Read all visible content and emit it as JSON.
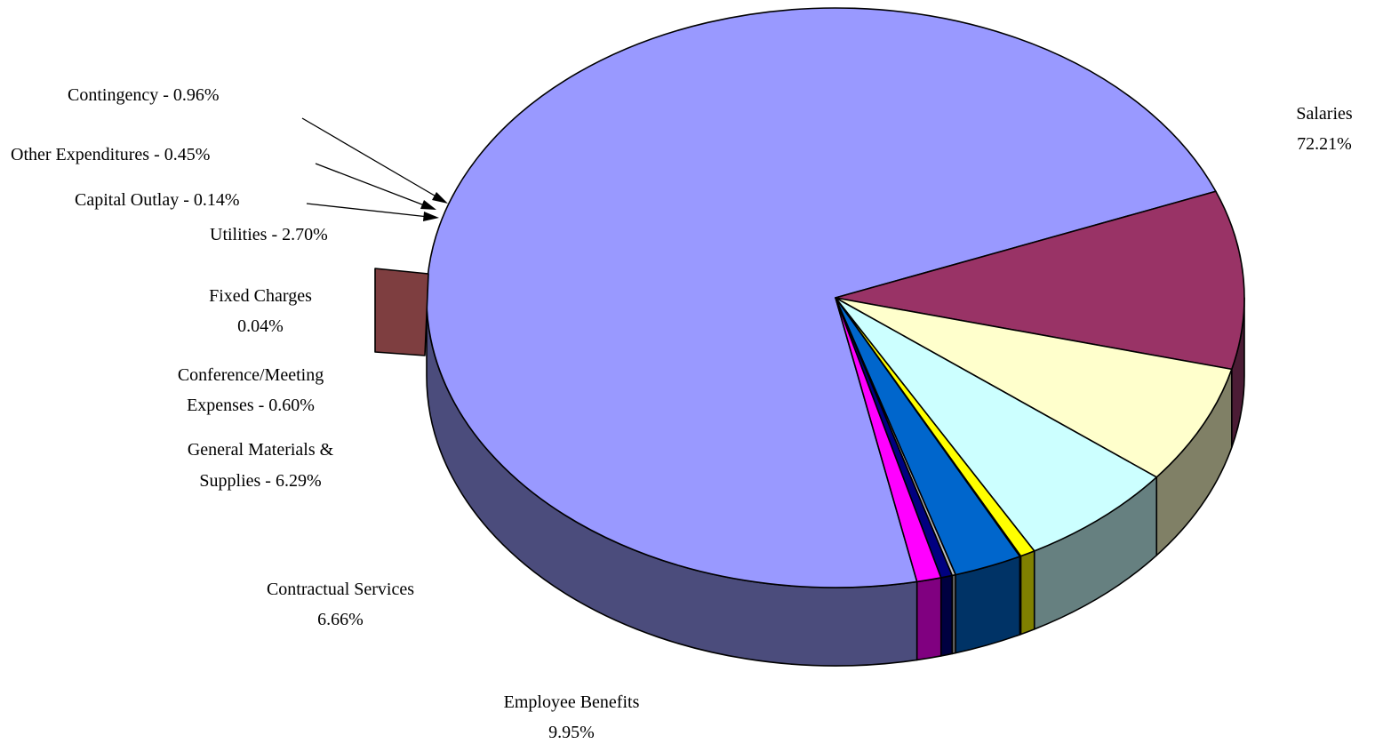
{
  "chart_data": {
    "type": "pie",
    "style": "3d-exploded",
    "title": "",
    "slices": [
      {
        "key": "salaries",
        "name": "Salaries",
        "value": 72.21,
        "value_label": "72.21%",
        "color": "#9999FF",
        "side_color": "#4B4C7C"
      },
      {
        "key": "employee-benefits",
        "name": "Employee Benefits",
        "value": 9.95,
        "value_label": "9.95%",
        "color": "#993366",
        "side_color": "#4B1C35"
      },
      {
        "key": "contractual-services",
        "name": "Contractual Services",
        "value": 6.66,
        "value_label": "6.66%",
        "color": "#FFFFCC",
        "side_color": "#808066"
      },
      {
        "key": "general-materials",
        "name": "General Materials & Supplies",
        "value": 6.29,
        "value_label": "6.29%",
        "color": "#CCFFFF",
        "side_color": "#668080"
      },
      {
        "key": "conference-meeting",
        "name": "Conference/Meeting Expenses",
        "value": 0.6,
        "value_label": "0.60%",
        "color": "#FFFF00",
        "side_color": "#808000"
      },
      {
        "key": "fixed-charges",
        "name": "Fixed Charges",
        "value": 0.04,
        "value_label": "0.04%",
        "color": "#7E3E40",
        "side_color": "#7E3E40"
      },
      {
        "key": "utilities",
        "name": "Utilities",
        "value": 2.7,
        "value_label": "2.70%",
        "color": "#0066CC",
        "side_color": "#003366"
      },
      {
        "key": "capital-outlay",
        "name": "Capital Outlay",
        "value": 0.14,
        "value_label": "0.14%",
        "color": "#C0C0C0",
        "side_color": "#606060"
      },
      {
        "key": "other-expenditures",
        "name": "Other Expenditures",
        "value": 0.45,
        "value_label": "0.45%",
        "color": "#000080",
        "side_color": "#000040"
      },
      {
        "key": "contingency",
        "name": "Contingency",
        "value": 0.96,
        "value_label": "0.96%",
        "color": "#FF00FF",
        "side_color": "#800080"
      }
    ],
    "labels": {
      "salaries": [
        "Salaries",
        "72.21%"
      ],
      "employee_benefits": [
        "Employee Benefits",
        "9.95%"
      ],
      "contractual_services": [
        "Contractual Services",
        "6.66%"
      ],
      "general_materials": [
        "General Materials &",
        "Supplies - 6.29%"
      ],
      "conference_meeting": [
        "Conference/Meeting",
        "Expenses - 0.60%"
      ],
      "fixed_charges": [
        "Fixed Charges",
        "0.04%"
      ],
      "utilities": "Utilities - 2.70%",
      "capital_outlay": "Capital Outlay - 0.14%",
      "other_expenditures": "Other Expenditures - 0.45%",
      "contingency": "Contingency - 0.96%"
    },
    "legend": "none"
  }
}
